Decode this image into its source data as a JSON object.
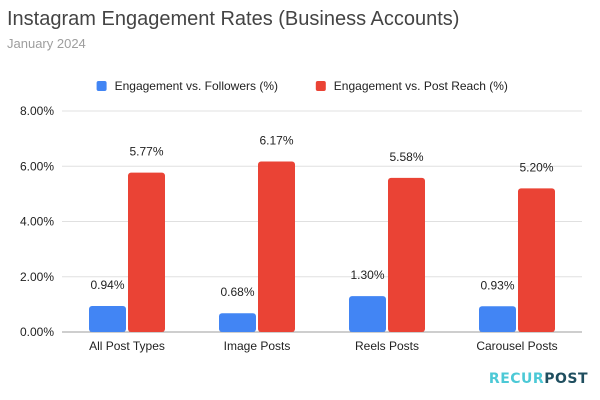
{
  "header": {
    "title": "Instagram Engagement Rates (Business Accounts)",
    "subtitle": "January 2024"
  },
  "brand": {
    "part1": "RECUR",
    "part2": "POST",
    "colors": {
      "part1": "#4cc9d6",
      "part2": "#1f4e5f"
    }
  },
  "chart_data": {
    "type": "bar",
    "title": "Instagram Engagement Rates (Business Accounts)",
    "subtitle": "January 2024",
    "categories": [
      "All Post Types",
      "Image Posts",
      "Reels Posts",
      "Carousel Posts"
    ],
    "series": [
      {
        "name": "Engagement vs. Followers (%)",
        "color": "#4285f4",
        "values": [
          0.94,
          0.68,
          1.3,
          0.93
        ],
        "labels": [
          "0.94%",
          "0.68%",
          "1.30%",
          "0.93%"
        ]
      },
      {
        "name": "Engagement vs. Post Reach (%)",
        "color": "#ea4335",
        "values": [
          5.77,
          6.17,
          5.58,
          5.2
        ],
        "labels": [
          "5.77%",
          "6.17%",
          "5.58%",
          "5.20%"
        ]
      }
    ],
    "ylim": [
      0,
      8
    ],
    "yticks": [
      0,
      2,
      4,
      6,
      8
    ],
    "ytick_labels": [
      "0.00%",
      "2.00%",
      "4.00%",
      "6.00%",
      "8.00%"
    ],
    "xlabel": "",
    "ylabel": "",
    "grid": true,
    "legend_position": "top"
  }
}
